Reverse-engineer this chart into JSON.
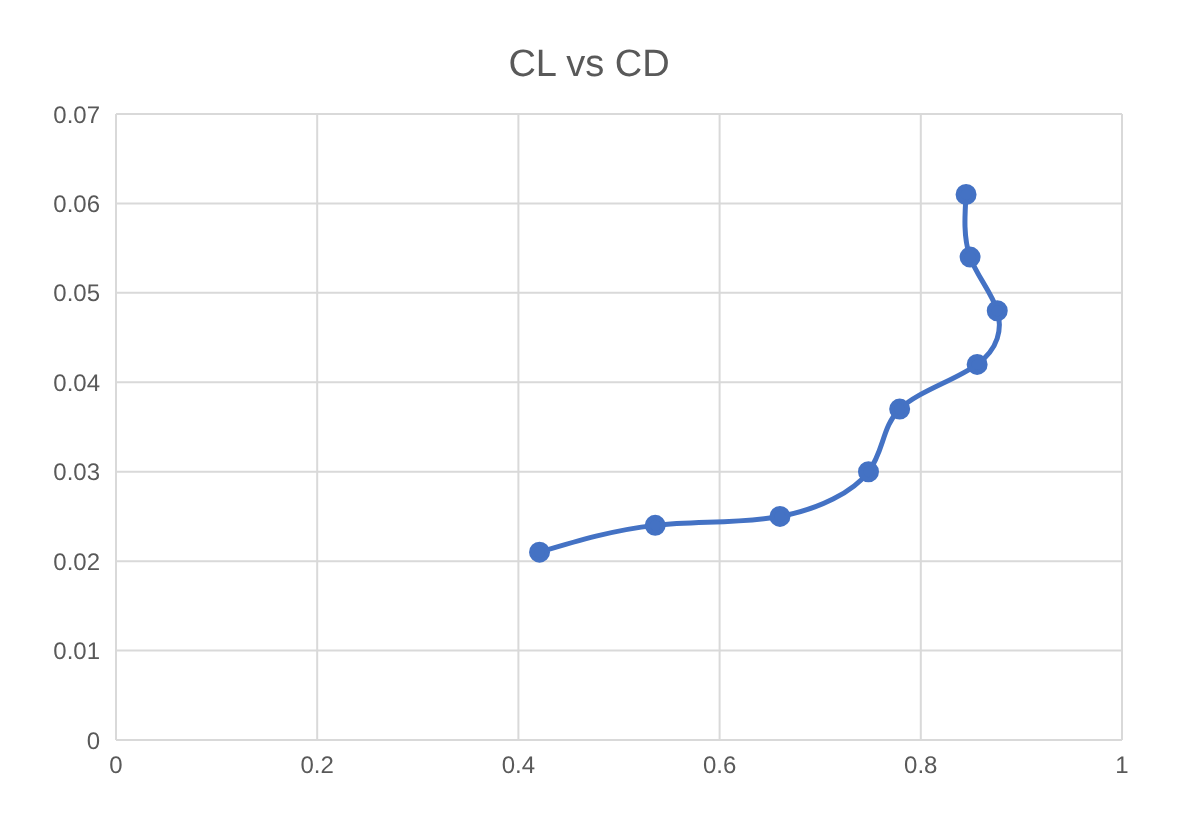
{
  "chart_data": {
    "type": "line",
    "title": "CL vs CD",
    "x": [
      0.421,
      0.536,
      0.66,
      0.748,
      0.779,
      0.856,
      0.876,
      0.849,
      0.845
    ],
    "series": [
      {
        "color": "#4472c4",
        "values": [
          0.021,
          0.024,
          0.025,
          0.03,
          0.037,
          0.042,
          0.048,
          0.054,
          0.061
        ]
      }
    ],
    "xlim": [
      0,
      1
    ],
    "xticks": [
      0,
      0.2,
      0.4,
      0.6,
      0.8,
      1
    ],
    "ylim": [
      0,
      0.07
    ],
    "yticks": [
      0,
      0.01,
      0.02,
      0.03,
      0.04,
      0.05,
      0.06,
      0.07
    ],
    "grid": true,
    "marker": "circle",
    "line_style": "solid",
    "legend": false
  }
}
